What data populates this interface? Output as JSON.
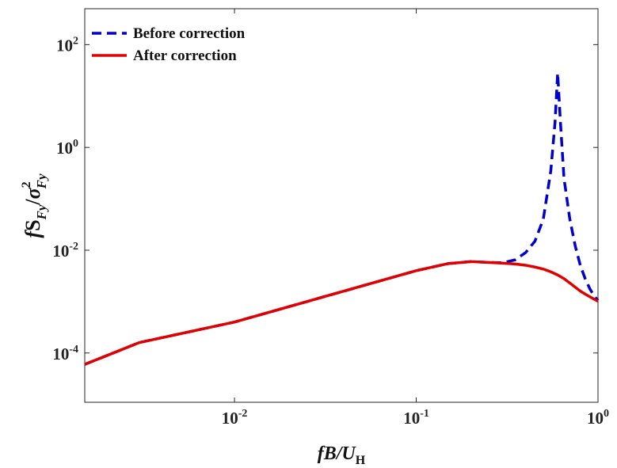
{
  "chart_data": {
    "type": "line",
    "xscale": "log",
    "yscale": "log",
    "xlim": [
      0.0015,
      1
    ],
    "ylim": [
      1.1e-05,
      500
    ],
    "xticks": [
      {
        "value": 0.01,
        "base": "10",
        "exp": "-2"
      },
      {
        "value": 0.1,
        "base": "10",
        "exp": "-1"
      },
      {
        "value": 1,
        "base": "10",
        "exp": "0"
      }
    ],
    "yticks": [
      {
        "value": 0.0001,
        "base": "10",
        "exp": "-4"
      },
      {
        "value": 0.01,
        "base": "10",
        "exp": "-2"
      },
      {
        "value": 1,
        "base": "10",
        "exp": "0"
      },
      {
        "value": 100,
        "base": "10",
        "exp": "2"
      }
    ],
    "xlabel": {
      "main": "fB/U",
      "sub": "H"
    },
    "ylabel": {
      "f": "f",
      "S": "S",
      "sub1": "Fy",
      "slash": "/",
      "sigma": "σ",
      "sup": "2",
      "sub2": "Fy"
    },
    "legend_position": "top-left",
    "grid": false,
    "series": [
      {
        "name": "Before correction",
        "color": "#0000cc",
        "style": "dashed",
        "x": [
          0.0015,
          0.003,
          0.01,
          0.03,
          0.1,
          0.15,
          0.2,
          0.25,
          0.3,
          0.35,
          0.4,
          0.45,
          0.5,
          0.55,
          0.58,
          0.6,
          0.62,
          0.65,
          0.7,
          0.75,
          0.8,
          0.85,
          0.9,
          0.95,
          1.0
        ],
        "y": [
          6e-05,
          0.00016,
          0.0004,
          0.0012,
          0.004,
          0.0055,
          0.006,
          0.0058,
          0.0057,
          0.0065,
          0.009,
          0.015,
          0.04,
          0.35,
          3.0,
          28.0,
          3.5,
          0.25,
          0.04,
          0.012,
          0.005,
          0.0028,
          0.0018,
          0.0013,
          0.00105
        ]
      },
      {
        "name": "After correction",
        "color": "#e00000",
        "style": "solid",
        "x": [
          0.0015,
          0.003,
          0.01,
          0.03,
          0.1,
          0.15,
          0.2,
          0.25,
          0.3,
          0.35,
          0.4,
          0.45,
          0.5,
          0.55,
          0.6,
          0.65,
          0.7,
          0.75,
          0.8,
          0.85,
          0.9,
          0.95,
          1.0
        ],
        "y": [
          6e-05,
          0.00016,
          0.0004,
          0.0012,
          0.004,
          0.0055,
          0.006,
          0.0058,
          0.0056,
          0.0054,
          0.0051,
          0.0047,
          0.0043,
          0.0038,
          0.0033,
          0.0028,
          0.0023,
          0.0019,
          0.0016,
          0.0014,
          0.00125,
          0.00112,
          0.00102
        ]
      }
    ]
  }
}
